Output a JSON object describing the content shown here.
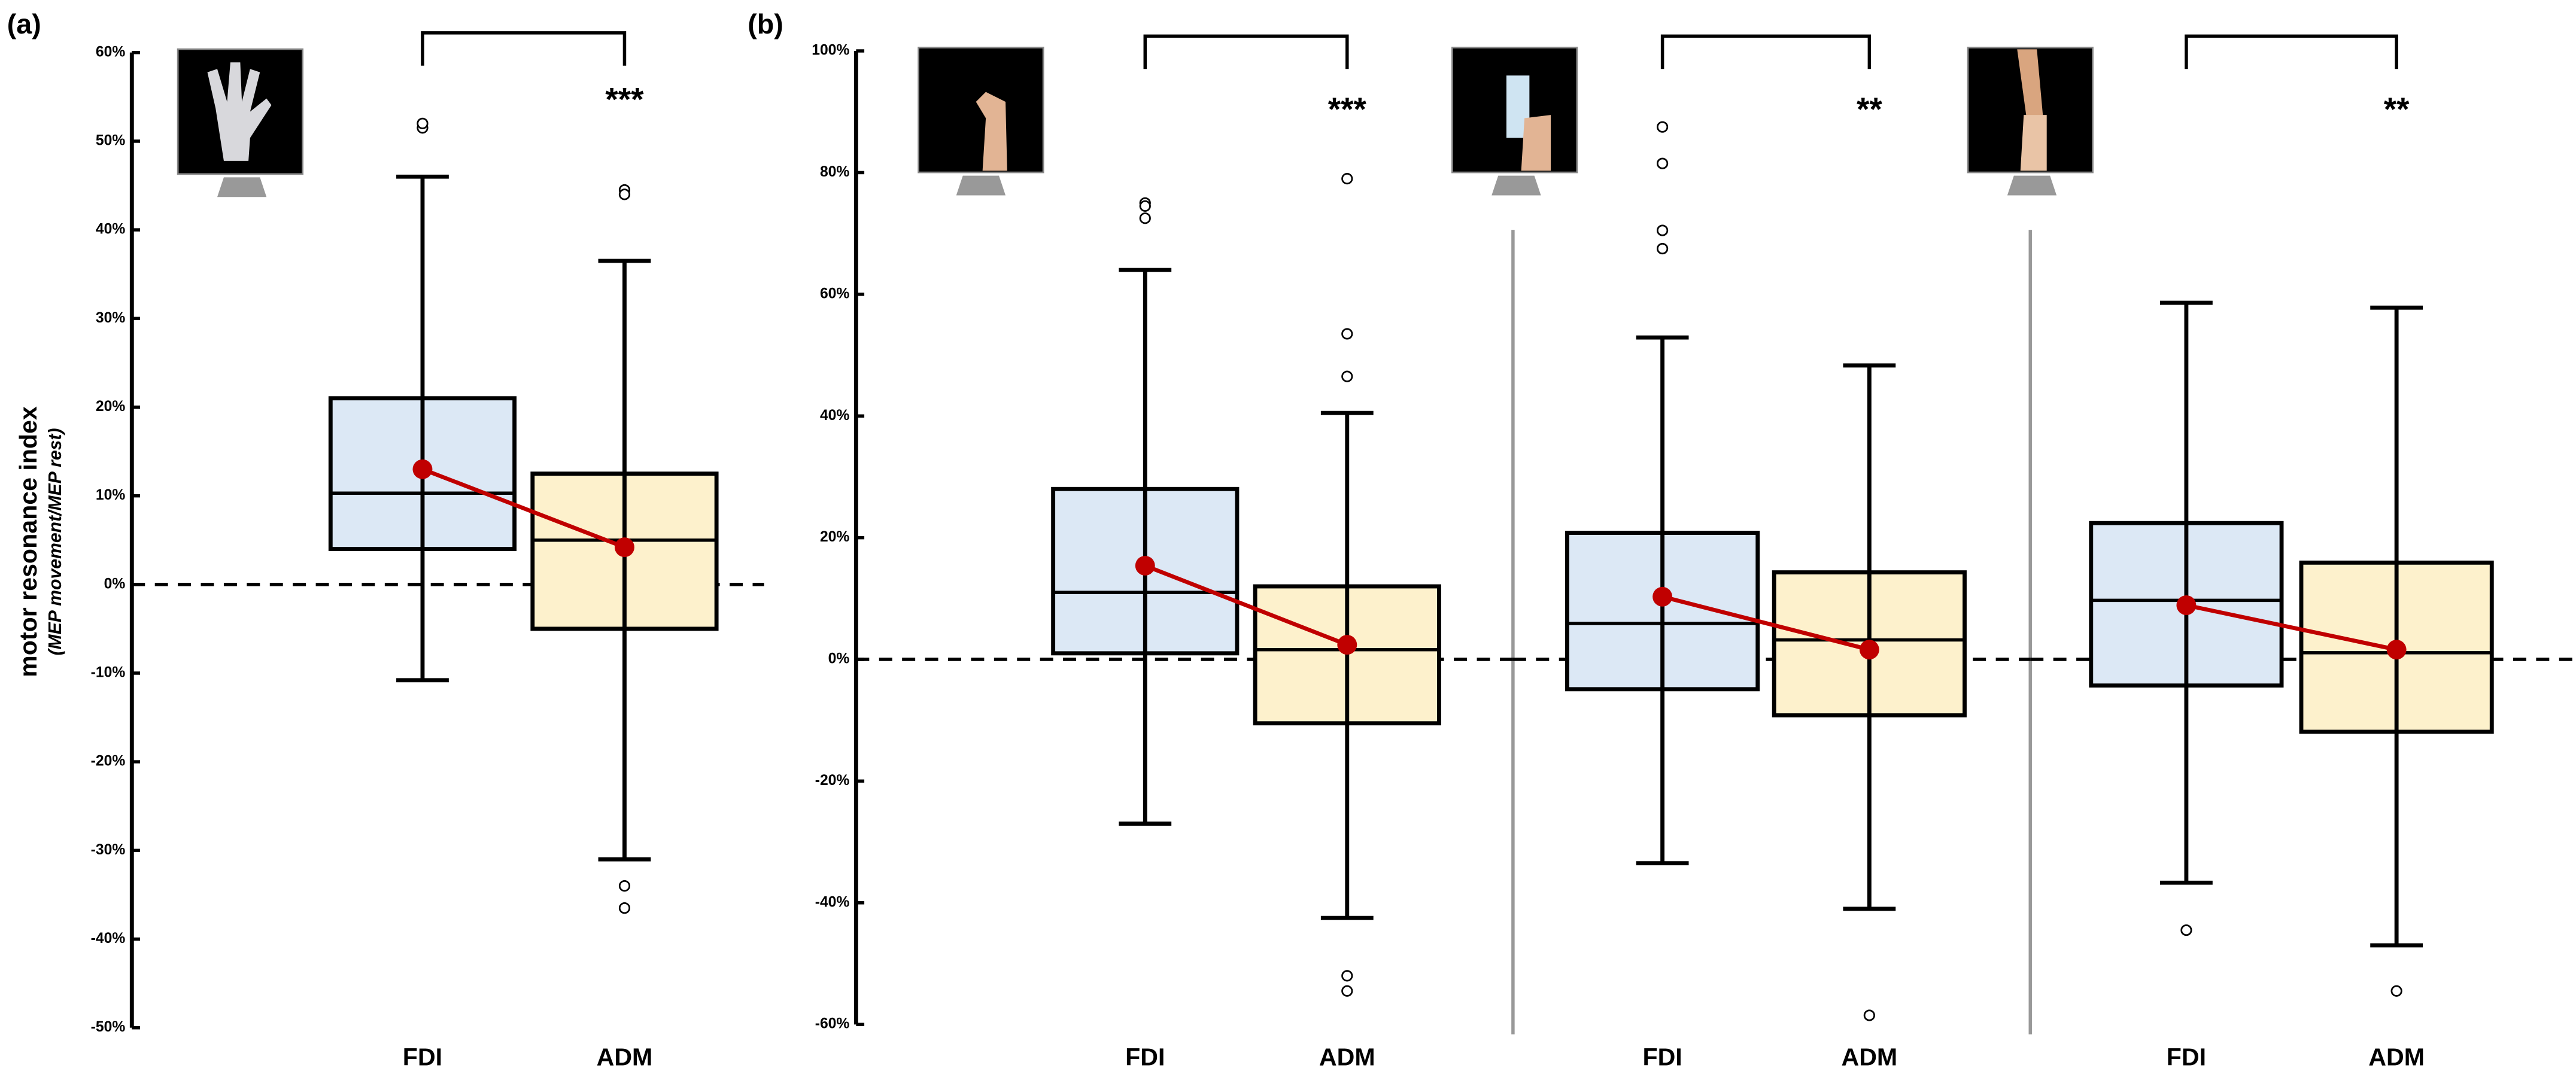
{
  "panel_labels": [
    "(a)",
    "(b)"
  ],
  "y_label": "motor resonance index",
  "y_sublabel": "(MEP movement/MEP rest)",
  "chart_data": [
    {
      "type": "box",
      "categories": [
        "FDI",
        "ADM"
      ],
      "significance": "***",
      "colors": [
        "#dce8f5",
        "#fdf1cc"
      ],
      "mean_color": "#c00000",
      "ylim": [
        -50,
        60
      ],
      "yticks": [
        {
          "value": -50,
          "label": "-50%"
        },
        {
          "value": -40,
          "label": "-40%"
        },
        {
          "value": -30,
          "label": "-30%"
        },
        {
          "value": -20,
          "label": "-20%"
        },
        {
          "value": -10,
          "label": "-10%"
        },
        {
          "value": 0,
          "label": "0%"
        },
        {
          "value": 10,
          "label": "10%"
        },
        {
          "value": 20,
          "label": "20%"
        },
        {
          "value": 30,
          "label": "30%"
        },
        {
          "value": 40,
          "label": "40%"
        },
        {
          "value": 50,
          "label": "50%"
        },
        {
          "value": 60,
          "label": "60%"
        }
      ],
      "boxes": [
        {
          "low": -10.8,
          "q1": 4,
          "median": 10.3,
          "q3": 21,
          "high": 46,
          "mean": 13,
          "outliers": [
            51.5,
            52
          ]
        },
        {
          "low": -31,
          "q1": -5,
          "median": 5,
          "q3": 12.5,
          "high": 36.5,
          "mean": 4.2,
          "outliers": [
            44.5,
            44,
            -34,
            -36.5
          ]
        }
      ]
    },
    {
      "type": "box",
      "categories": [
        "FDI",
        "ADM"
      ],
      "significance": "***",
      "colors": [
        "#dce8f5",
        "#fdf1cc"
      ],
      "mean_color": "#c00000",
      "ylim": [
        -60,
        100
      ],
      "yticks": [
        {
          "value": -60,
          "label": "-60%"
        },
        {
          "value": -40,
          "label": "-40%"
        },
        {
          "value": -20,
          "label": "-20%"
        },
        {
          "value": 0,
          "label": "0%"
        },
        {
          "value": 20,
          "label": "20%"
        },
        {
          "value": 40,
          "label": "40%"
        },
        {
          "value": 60,
          "label": "60%"
        },
        {
          "value": 80,
          "label": "80%"
        },
        {
          "value": 100,
          "label": "100%"
        }
      ],
      "boxes": [
        {
          "low": -27,
          "q1": 1,
          "median": 11,
          "q3": 28,
          "high": 64,
          "mean": 15.4,
          "outliers": [
            75,
            74.5,
            72.5
          ]
        },
        {
          "low": -42.5,
          "q1": -10.5,
          "median": 1.6,
          "q3": 12,
          "high": 40.5,
          "mean": 2.4,
          "outliers": [
            79,
            53.5,
            46.5,
            -52,
            -54.5
          ]
        }
      ]
    },
    {
      "type": "box",
      "categories": [
        "FDI",
        "ADM"
      ],
      "significance": "**",
      "colors": [
        "#dce8f5",
        "#fdf1cc"
      ],
      "mean_color": "#c00000",
      "ylim": [
        -60,
        100
      ],
      "boxes": [
        {
          "low": -33.5,
          "q1": -4.9,
          "median": 5.9,
          "q3": 20.8,
          "high": 52.9,
          "mean": 10.3,
          "outliers": [
            87.5,
            81.5,
            70.5,
            67.5
          ]
        },
        {
          "low": -41,
          "q1": -9.2,
          "median": 3.2,
          "q3": 14.3,
          "high": 48.3,
          "mean": 1.6,
          "outliers": [
            -58.5
          ]
        }
      ]
    },
    {
      "type": "box",
      "categories": [
        "FDI",
        "ADM"
      ],
      "significance": "**",
      "colors": [
        "#dce8f5",
        "#fdf1cc"
      ],
      "mean_color": "#c00000",
      "ylim": [
        -60,
        100
      ],
      "boxes": [
        {
          "low": -36.7,
          "q1": -4.3,
          "median": 9.7,
          "q3": 22.4,
          "high": 58.6,
          "mean": 8.9,
          "outliers": [
            -44.5
          ]
        },
        {
          "low": -47,
          "q1": -11.9,
          "median": 1.1,
          "q3": 15.9,
          "high": 57.8,
          "mean": 1.6,
          "outliers": [
            -54.5
          ]
        }
      ]
    }
  ]
}
